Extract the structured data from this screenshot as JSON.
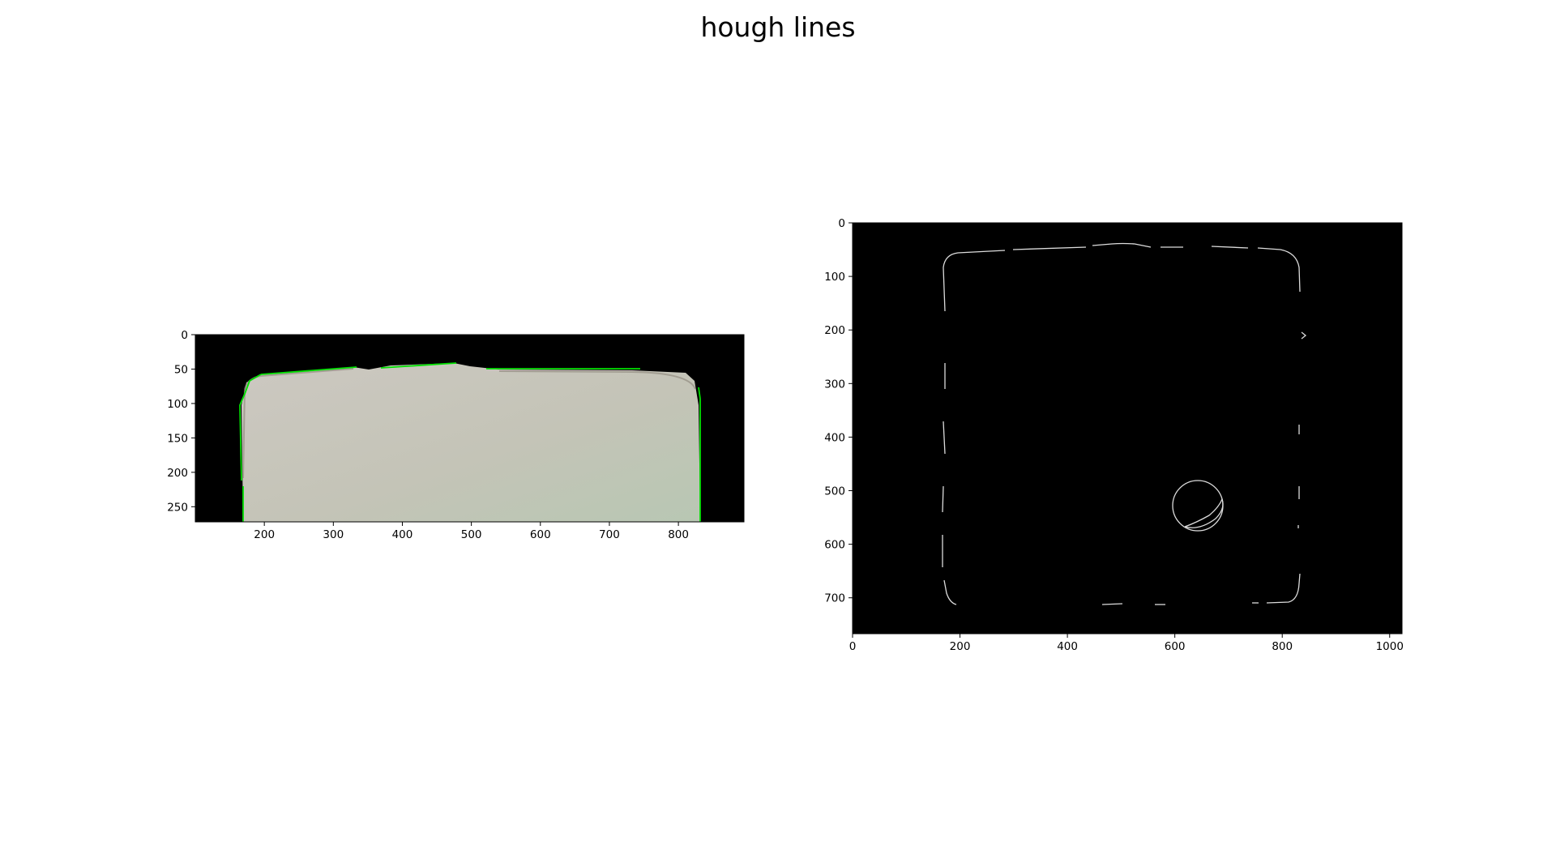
{
  "title": "hough lines",
  "colors": {
    "background": "#ffffff",
    "image_background": "#000000",
    "hough_line": "#00e000",
    "block_fill": "#c9c6bc",
    "edge_stroke": "#d8d8d8"
  },
  "chart_data": [
    {
      "type": "image",
      "name": "left-panel",
      "content": "photo of pale block with green Hough line segments overlaid on its outline, black background",
      "xlim": [
        100,
        895
      ],
      "ylim": [
        272,
        0
      ],
      "x_ticks": [
        200,
        300,
        400,
        500,
        600,
        700,
        800
      ],
      "y_ticks": [
        0,
        50,
        100,
        150,
        200,
        250
      ],
      "grid": false
    },
    {
      "type": "image",
      "name": "right-panel",
      "content": "edge map (white edges on black) of a rounded square outline with a small circle near the lower right",
      "xlim": [
        0,
        1023
      ],
      "ylim": [
        767,
        0
      ],
      "x_ticks": [
        0,
        200,
        400,
        600,
        800,
        1000
      ],
      "y_ticks": [
        0,
        100,
        200,
        300,
        400,
        500,
        600,
        700
      ],
      "grid": false
    }
  ]
}
